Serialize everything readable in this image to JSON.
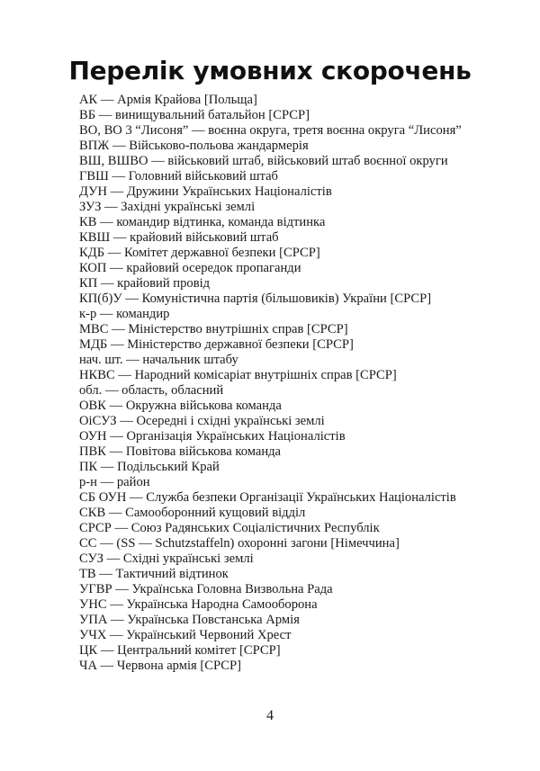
{
  "title": "Перелік умовних скорочень",
  "entries": [
    "АК — Армія Крайова [Польща]",
    "ВБ — винищувальний батальйон [СРСР]",
    "ВО, ВО 3 “Лисоня” — воєнна округа, третя воєнна округа “Лисоня”",
    "ВПЖ — Військово-польова жандармерія",
    "ВШ, ВШВО — військовий штаб, військовий штаб воєнної округи",
    "ГВШ — Головний військовий штаб",
    "ДУН — Дружини Українських Націоналістів",
    "ЗУЗ — Західні українські землі",
    "КВ — командир відтинка, команда відтинка",
    "КВШ — крайовий військовий штаб",
    "КДБ — Комітет державної безпеки [СРСР]",
    "КОП — крайовий осередок пропаганди",
    "КП — крайовий провід",
    "КП(б)У — Комуністична партія (більшовиків) України [СРСР]",
    "к-р — командир",
    "МВС — Міністерство внутрішніх справ [СРСР]",
    "МДБ — Міністерство державної безпеки [СРСР]",
    "нач. шт. — начальник штабу",
    "НКВС — Народний комісаріат внутрішніх справ [СРСР]",
    "обл. — область, обласний",
    "ОВК — Окружна військова команда",
    "ОіСУЗ — Осередні і східні українські землі",
    "ОУН — Організація Українських Націоналістів",
    "ПВК — Повітова військова команда",
    "ПК — Подільський Край",
    "р-н — район",
    "СБ ОУН — Служба безпеки Організації Українських Націоналістів",
    "СКВ — Самооборонний кущовий відділ",
    "СРСР — Союз Радянських Соціалістичних Республік",
    "СС — (SS — Schutzstaffeln) охоронні загони [Німеччина]",
    "СУЗ — Східні українські землі",
    "ТВ — Тактичний відтинок",
    "УГВР — Українська Головна Визвольна Рада",
    "УНС — Українська Народна Самооборона",
    "УПА — Українська Повстанська Армія",
    "УЧХ — Український Червоний Хрест",
    "ЦК — Центральний комітет [СРСР]",
    "ЧА — Червона армія [СРСР]"
  ],
  "page_number": "4"
}
